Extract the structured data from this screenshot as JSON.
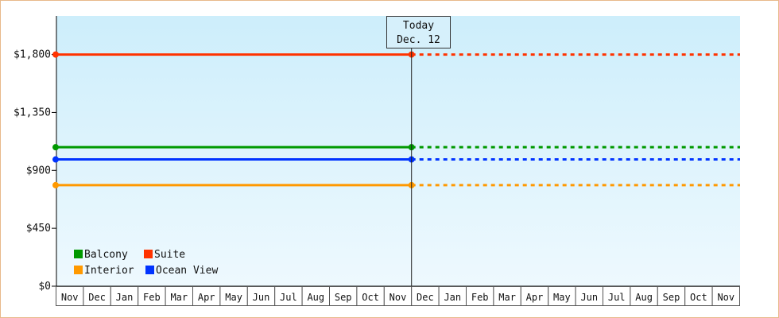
{
  "chart_data": {
    "type": "line",
    "title": "",
    "xlabel": "",
    "ylabel": "",
    "ylim": [
      0,
      2100
    ],
    "y_ticks": [
      0,
      450,
      900,
      1350,
      1800
    ],
    "y_tick_labels": [
      "$0",
      "$450",
      "$900",
      "$1,350",
      "$1,800"
    ],
    "x_tick_labels": [
      "Nov",
      "Dec",
      "Jan",
      "Feb",
      "Mar",
      "Apr",
      "May",
      "Jun",
      "Jul",
      "Aug",
      "Sep",
      "Oct",
      "Nov",
      "Dec",
      "Jan",
      "Feb",
      "Mar",
      "Apr",
      "May",
      "Jun",
      "Jul",
      "Aug",
      "Sep",
      "Oct",
      "Nov"
    ],
    "today_index": 13,
    "today_label": "Today",
    "today_date": "Dec. 12",
    "series": [
      {
        "name": "Suite",
        "color": "#ff3300",
        "value": 1800
      },
      {
        "name": "Balcony",
        "color": "#009900",
        "value": 1080
      },
      {
        "name": "Ocean View",
        "color": "#0033ff",
        "value": 985
      },
      {
        "name": "Interior",
        "color": "#ff9900",
        "value": 785
      }
    ],
    "legend_order": [
      "Balcony",
      "Suite",
      "Interior",
      "Ocean View"
    ],
    "legend_position": "bottom-left",
    "actual_style": "solid",
    "projected_style": "dashed",
    "grid": false
  }
}
